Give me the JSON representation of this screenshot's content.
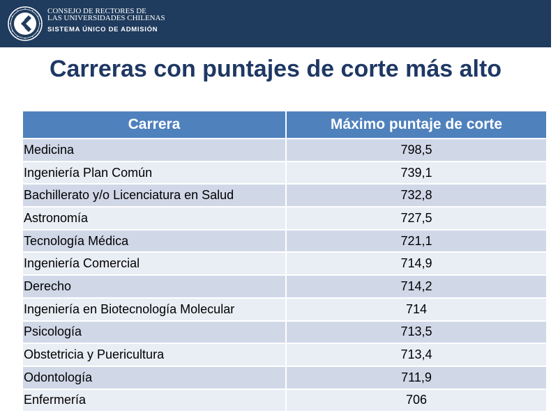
{
  "header": {
    "logo_icon": "university-seal-icon",
    "org_line1": "CONSEJO DE RECTORES DE",
    "org_line2": "LAS UNIVERSIDADES CHILENAS",
    "org_line3": "SISTEMA ÚNICO DE ADMISIÓN"
  },
  "title": "Carreras con puntajes de corte más alto",
  "table": {
    "columns": [
      "Carrera",
      "Máximo puntaje de corte"
    ],
    "rows": [
      {
        "carrera": "Medicina",
        "puntaje": "798,5"
      },
      {
        "carrera": "Ingeniería Plan Común",
        "puntaje": "739,1"
      },
      {
        "carrera": "Bachillerato y/o Licenciatura en Salud",
        "puntaje": "732,8"
      },
      {
        "carrera": "Astronomía",
        "puntaje": "727,5"
      },
      {
        "carrera": "Tecnología Médica",
        "puntaje": "721,1"
      },
      {
        "carrera": "Ingeniería Comercial",
        "puntaje": "714,9"
      },
      {
        "carrera": "Derecho",
        "puntaje": "714,2"
      },
      {
        "carrera": "Ingeniería en Biotecnología Molecular",
        "puntaje": "714"
      },
      {
        "carrera": "Psicología",
        "puntaje": "713,5"
      },
      {
        "carrera": "Obstetricia y Puericultura",
        "puntaje": "713,4"
      },
      {
        "carrera": "Odontología",
        "puntaje": "711,9"
      },
      {
        "carrera": "Enfermería",
        "puntaje": "706"
      }
    ]
  },
  "colors": {
    "header_bar": "#1f3b5d",
    "title": "#1f3864",
    "table_header": "#4f81bd",
    "row_dark": "#d0d8e8",
    "row_light": "#e9edf4"
  }
}
